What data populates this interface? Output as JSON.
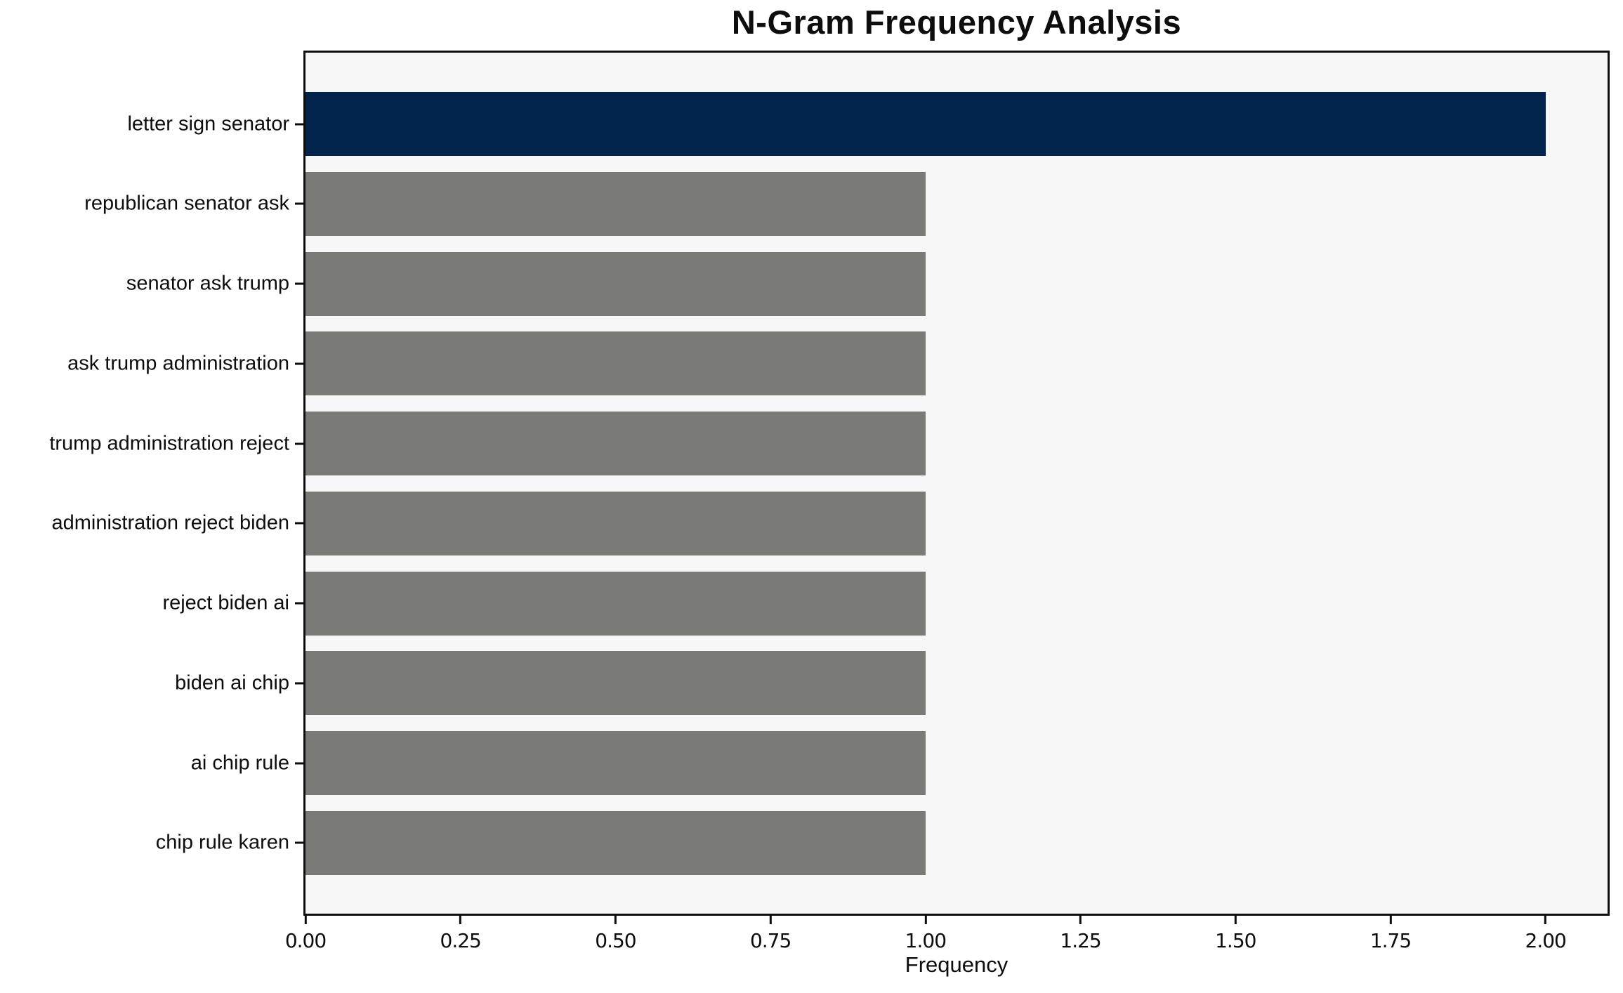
{
  "figure": {
    "background": "#FFFFFF"
  },
  "chart_data": {
    "type": "bar",
    "orientation": "horizontal",
    "title": "N-Gram Frequency Analysis",
    "xlabel": "Frequency",
    "ylabel": "",
    "categories": [
      "letter sign senator",
      "republican senator ask",
      "senator ask trump",
      "ask trump administration",
      "trump administration reject",
      "administration reject biden",
      "reject biden ai",
      "biden ai chip",
      "ai chip rule",
      "chip rule karen"
    ],
    "values": [
      2,
      1,
      1,
      1,
      1,
      1,
      1,
      1,
      1,
      1
    ],
    "bar_colors": [
      "#02234C",
      "#7A7A77",
      "#7A7A77",
      "#7A7A77",
      "#7A7A77",
      "#7A7A77",
      "#7A7A77",
      "#7A7A77",
      "#7A7A77",
      "#7A7A77"
    ],
    "xlim": [
      0,
      2.1
    ],
    "xticks": [
      {
        "value": 0.0,
        "label": "0.00"
      },
      {
        "value": 0.25,
        "label": "0.25"
      },
      {
        "value": 0.5,
        "label": "0.50"
      },
      {
        "value": 0.75,
        "label": "0.75"
      },
      {
        "value": 1.0,
        "label": "1.00"
      },
      {
        "value": 1.25,
        "label": "1.25"
      },
      {
        "value": 1.5,
        "label": "1.50"
      },
      {
        "value": 1.75,
        "label": "1.75"
      },
      {
        "value": 2.0,
        "label": "2.00"
      }
    ],
    "grid": false,
    "legend": "none",
    "colors": {
      "highlight_bar": "#02234C",
      "default_bar": "#7A7A77",
      "plot_background": "#F7F7F7",
      "spine": "#0E0E0E"
    }
  }
}
